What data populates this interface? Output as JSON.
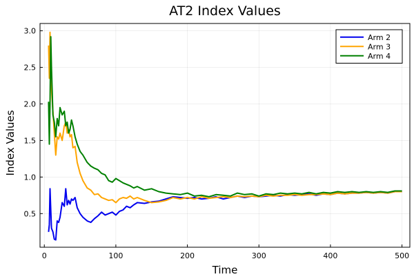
{
  "chart_data": {
    "type": "line",
    "title": "AT2 Index Values",
    "xlabel": "Time",
    "ylabel": "Index Values",
    "xlim": [
      -6,
      511
    ],
    "ylim": [
      0.04,
      3.1
    ],
    "xticks": [
      0,
      100,
      200,
      300,
      400,
      500
    ],
    "xtick_labels": [
      "0",
      "100",
      "200",
      "300",
      "400",
      "500"
    ],
    "yticks": [
      0.5,
      1.0,
      1.5,
      2.0,
      2.5,
      3.0
    ],
    "ytick_labels": [
      "0.5",
      "1.0",
      "1.5",
      "2.0",
      "2.5",
      "3.0"
    ],
    "grid": true,
    "legend_position": "top-right",
    "series": [
      {
        "name": "Arm 2",
        "color": "#0000ee",
        "x": [
          6,
          7,
          8,
          9,
          10,
          12,
          14,
          16,
          18,
          20,
          22,
          25,
          28,
          30,
          32,
          34,
          36,
          38,
          40,
          43,
          46,
          50,
          54,
          60,
          65,
          70,
          75,
          80,
          85,
          90,
          95,
          100,
          105,
          110,
          115,
          120,
          125,
          130,
          140,
          150,
          160,
          170,
          180,
          190,
          200,
          210,
          220,
          230,
          240,
          250,
          260,
          270,
          280,
          290,
          300,
          310,
          320,
          330,
          340,
          350,
          360,
          370,
          380,
          390,
          400,
          410,
          420,
          430,
          440,
          450,
          460,
          470,
          480,
          490,
          500
        ],
        "values": [
          0.25,
          0.35,
          0.84,
          0.55,
          0.3,
          0.25,
          0.15,
          0.14,
          0.4,
          0.38,
          0.45,
          0.65,
          0.6,
          0.84,
          0.62,
          0.68,
          0.63,
          0.7,
          0.68,
          0.72,
          0.58,
          0.5,
          0.45,
          0.4,
          0.38,
          0.43,
          0.47,
          0.52,
          0.48,
          0.5,
          0.52,
          0.48,
          0.53,
          0.55,
          0.6,
          0.58,
          0.62,
          0.65,
          0.64,
          0.66,
          0.67,
          0.7,
          0.73,
          0.72,
          0.71,
          0.72,
          0.7,
          0.71,
          0.73,
          0.7,
          0.72,
          0.74,
          0.72,
          0.74,
          0.73,
          0.74,
          0.75,
          0.74,
          0.76,
          0.75,
          0.76,
          0.77,
          0.75,
          0.77,
          0.76,
          0.78,
          0.77,
          0.78,
          0.78,
          0.79,
          0.78,
          0.79,
          0.78,
          0.8,
          0.8
        ]
      },
      {
        "name": "Arm 3",
        "color": "#ffa500",
        "x": [
          6,
          7,
          8,
          9,
          10,
          12,
          14,
          16,
          18,
          20,
          22,
          25,
          28,
          30,
          32,
          34,
          36,
          38,
          40,
          43,
          46,
          50,
          54,
          60,
          65,
          70,
          75,
          80,
          85,
          90,
          95,
          100,
          105,
          110,
          115,
          120,
          125,
          130,
          140,
          150,
          160,
          170,
          180,
          190,
          200,
          210,
          220,
          230,
          240,
          250,
          260,
          270,
          280,
          290,
          300,
          310,
          320,
          330,
          340,
          350,
          360,
          370,
          380,
          390,
          400,
          410,
          420,
          430,
          440,
          450,
          460,
          470,
          480,
          490,
          500
        ],
        "values": [
          2.8,
          2.35,
          2.98,
          2.4,
          2.2,
          1.9,
          1.6,
          1.3,
          1.55,
          1.52,
          1.6,
          1.5,
          1.7,
          1.75,
          1.6,
          1.65,
          1.55,
          1.58,
          1.4,
          1.42,
          1.2,
          1.05,
          0.95,
          0.85,
          0.82,
          0.76,
          0.77,
          0.72,
          0.7,
          0.68,
          0.69,
          0.65,
          0.7,
          0.72,
          0.71,
          0.74,
          0.7,
          0.72,
          0.68,
          0.65,
          0.66,
          0.68,
          0.72,
          0.7,
          0.72,
          0.7,
          0.73,
          0.71,
          0.72,
          0.73,
          0.72,
          0.74,
          0.73,
          0.74,
          0.73,
          0.75,
          0.74,
          0.75,
          0.75,
          0.76,
          0.75,
          0.76,
          0.76,
          0.77,
          0.76,
          0.78,
          0.77,
          0.78,
          0.78,
          0.79,
          0.78,
          0.79,
          0.78,
          0.8,
          0.8
        ]
      },
      {
        "name": "Arm 4",
        "color": "#008000",
        "x": [
          6,
          7,
          8,
          9,
          10,
          12,
          14,
          16,
          18,
          20,
          22,
          25,
          28,
          30,
          32,
          34,
          36,
          38,
          40,
          43,
          46,
          50,
          54,
          60,
          65,
          70,
          75,
          80,
          85,
          90,
          95,
          100,
          105,
          110,
          115,
          120,
          125,
          130,
          140,
          150,
          160,
          170,
          180,
          190,
          200,
          210,
          220,
          230,
          240,
          250,
          260,
          270,
          280,
          290,
          300,
          310,
          320,
          330,
          340,
          350,
          360,
          370,
          380,
          390,
          400,
          410,
          420,
          430,
          440,
          450,
          460,
          470,
          480,
          490,
          500
        ],
        "values": [
          2.03,
          1.45,
          2.0,
          2.92,
          2.5,
          1.85,
          1.75,
          1.55,
          1.8,
          1.7,
          1.95,
          1.85,
          1.9,
          1.7,
          1.75,
          1.6,
          1.65,
          1.78,
          1.7,
          1.55,
          1.45,
          1.35,
          1.3,
          1.2,
          1.15,
          1.12,
          1.1,
          1.05,
          1.03,
          0.95,
          0.93,
          0.98,
          0.95,
          0.92,
          0.9,
          0.88,
          0.85,
          0.87,
          0.82,
          0.84,
          0.8,
          0.78,
          0.77,
          0.76,
          0.78,
          0.74,
          0.75,
          0.73,
          0.76,
          0.75,
          0.74,
          0.78,
          0.76,
          0.77,
          0.74,
          0.77,
          0.76,
          0.78,
          0.77,
          0.78,
          0.77,
          0.79,
          0.77,
          0.79,
          0.78,
          0.8,
          0.79,
          0.8,
          0.79,
          0.8,
          0.79,
          0.8,
          0.79,
          0.81,
          0.81
        ]
      }
    ]
  }
}
